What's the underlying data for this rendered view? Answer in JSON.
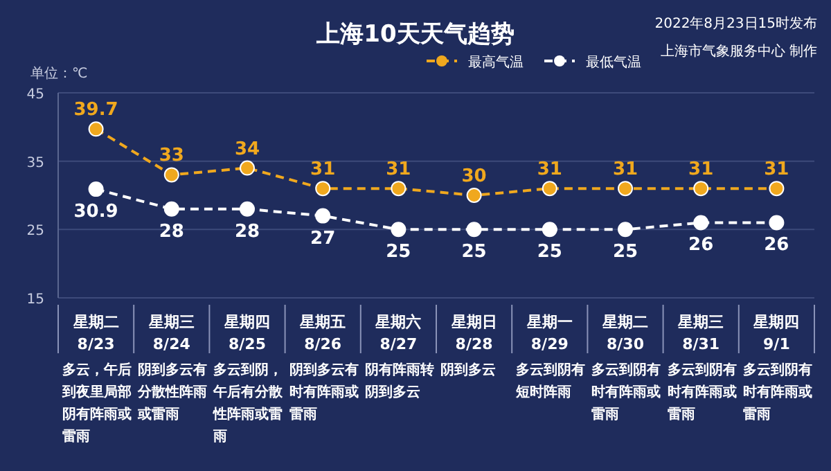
{
  "chart_data": {
    "type": "line",
    "title": "上海10天天气趋势",
    "subtitle": "2022年8月23日15时发布",
    "ylabel": "单位：℃",
    "categories": [
      "星期二 8/23",
      "星期三 8/24",
      "星期四 8/25",
      "星期五 8/26",
      "星期六 8/27",
      "星期日 8/28",
      "星期一 8/29",
      "星期二 8/30",
      "星期三 8/31",
      "星期四 9/1"
    ],
    "series": [
      {
        "name": "最高气温",
        "color": "#f0a81e",
        "values": [
          39.7,
          33,
          34,
          31,
          31,
          30,
          31,
          31,
          31,
          31
        ]
      },
      {
        "name": "最低气温",
        "color": "#ffffff",
        "values": [
          30.9,
          28,
          28,
          27,
          25,
          25,
          25,
          25,
          26,
          26
        ]
      }
    ],
    "ylim": [
      15,
      45
    ],
    "yticks": [
      15,
      25,
      35,
      45
    ],
    "grid": "y",
    "legend": "top right",
    "marker": "circle",
    "line_style": "dashed",
    "data_labels": true,
    "annotations": [
      "上海市气象服务中心 制作",
      "多云，午后到夜里局部阴有阵雨或雷雨",
      "阴到多云有分散性阵雨或雷雨",
      "多云到阴，午后有分散性阵雨或雷雨",
      "阴到多云有时有阵雨或雷雨",
      "阴有阵雨转阴到多云",
      "阴到多云",
      "多云到阴有短时阵雨",
      "多云到阴有时有阵雨或雷雨",
      "多云到阴有时有阵雨或雷雨",
      "多云到阴有时有阵雨或雷雨"
    ]
  }
}
